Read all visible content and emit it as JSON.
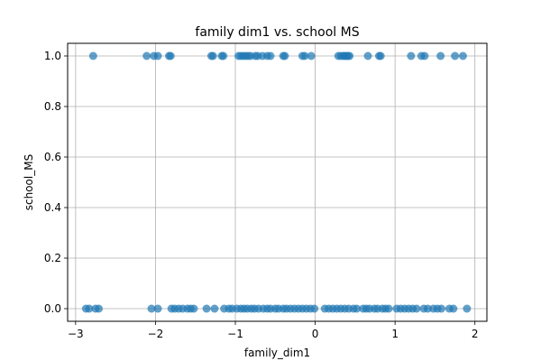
{
  "chart_data": {
    "type": "scatter",
    "title": "family dim1 vs. school MS",
    "xlabel": "family_dim1",
    "ylabel": "school_MS",
    "xlim": [
      -3.1,
      2.15
    ],
    "ylim": [
      -0.05,
      1.05
    ],
    "xticks": [
      -3,
      -2,
      -1,
      0,
      1,
      2
    ],
    "xtick_labels": [
      "−3",
      "−2",
      "−1",
      "0",
      "1",
      "2"
    ],
    "yticks": [
      0.0,
      0.2,
      0.4,
      0.6,
      0.8,
      1.0
    ],
    "ytick_labels": [
      "0.0",
      "0.2",
      "0.4",
      "0.6",
      "0.8",
      "1.0"
    ],
    "grid": true,
    "marker_color": "#1f77b4",
    "marker_alpha": 0.7,
    "series": [
      {
        "x": [
          -2.78,
          -2.11,
          -2.02,
          -1.97,
          -1.83,
          -1.81,
          -1.3,
          -1.28,
          -1.17,
          -1.15,
          -0.96,
          -0.93,
          -0.9,
          -0.87,
          -0.84,
          -0.81,
          -0.75,
          -0.72,
          -0.66,
          -0.6,
          -0.56,
          -0.4,
          -0.38,
          -0.16,
          -0.13,
          -0.05,
          0.29,
          0.32,
          0.35,
          0.37,
          0.39,
          0.41,
          0.43,
          0.66,
          0.8,
          0.82,
          1.2,
          1.33,
          1.37,
          1.57,
          1.75,
          1.85
        ],
        "y": [
          1,
          1,
          1,
          1,
          1,
          1,
          1,
          1,
          1,
          1,
          1,
          1,
          1,
          1,
          1,
          1,
          1,
          1,
          1,
          1,
          1,
          1,
          1,
          1,
          1,
          1,
          1,
          1,
          1,
          1,
          1,
          1,
          1,
          1,
          1,
          1,
          1,
          1,
          1,
          1,
          1,
          1
        ]
      },
      {
        "x": [
          -2.87,
          -2.83,
          -2.75,
          -2.71,
          -2.05,
          -1.97,
          -1.8,
          -1.76,
          -1.71,
          -1.66,
          -1.6,
          -1.56,
          -1.52,
          -1.36,
          -1.26,
          -1.14,
          -1.08,
          -1.04,
          -0.98,
          -0.93,
          -0.89,
          -0.85,
          -0.8,
          -0.76,
          -0.71,
          -0.65,
          -0.6,
          -0.56,
          -0.5,
          -0.46,
          -0.4,
          -0.36,
          -0.31,
          -0.26,
          -0.21,
          -0.16,
          -0.11,
          -0.06,
          -0.01,
          0.12,
          0.17,
          0.22,
          0.27,
          0.32,
          0.37,
          0.42,
          0.48,
          0.52,
          0.6,
          0.64,
          0.68,
          0.74,
          0.78,
          0.84,
          0.88,
          0.92,
          1.02,
          1.07,
          1.12,
          1.17,
          1.22,
          1.27,
          1.36,
          1.41,
          1.48,
          1.53,
          1.58,
          1.68,
          1.73,
          1.9
        ],
        "y": [
          0,
          0,
          0,
          0,
          0,
          0,
          0,
          0,
          0,
          0,
          0,
          0,
          0,
          0,
          0,
          0,
          0,
          0,
          0,
          0,
          0,
          0,
          0,
          0,
          0,
          0,
          0,
          0,
          0,
          0,
          0,
          0,
          0,
          0,
          0,
          0,
          0,
          0,
          0,
          0,
          0,
          0,
          0,
          0,
          0,
          0,
          0,
          0,
          0,
          0,
          0,
          0,
          0,
          0,
          0,
          0,
          0,
          0,
          0,
          0,
          0,
          0,
          0,
          0,
          0,
          0,
          0,
          0,
          0,
          0
        ]
      }
    ]
  }
}
